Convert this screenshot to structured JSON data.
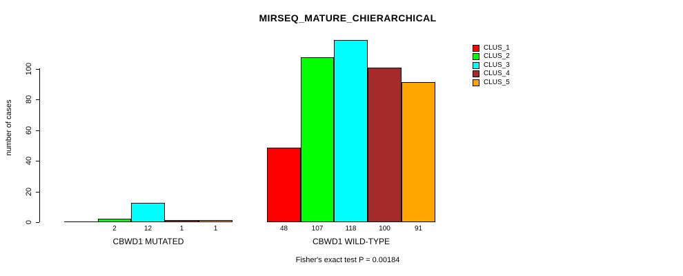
{
  "page": {
    "title": "MIRSEQ_MATURE_CHIERARCHICAL",
    "footer": "Fisher's exact test P = 0.00184"
  },
  "chart_data": {
    "type": "bar",
    "title": "MIRSEQ_MATURE_CHIERARCHICAL",
    "xlabel": "",
    "ylabel": "number of cases",
    "ylim": [
      0,
      118
    ],
    "yticks": [
      0,
      20,
      40,
      60,
      80,
      100
    ],
    "grid": false,
    "legend_position": "top-right",
    "categories": [
      "CBWD1 MUTATED",
      "CBWD1 WILD-TYPE"
    ],
    "series": [
      {
        "name": "CLUS_1",
        "color": "#FF0000",
        "values": [
          0,
          48
        ]
      },
      {
        "name": "CLUS_2",
        "color": "#00FF00",
        "values": [
          2,
          107
        ]
      },
      {
        "name": "CLUS_3",
        "color": "#00FFFF",
        "values": [
          12,
          118
        ]
      },
      {
        "name": "CLUS_4",
        "color": "#A52A2A",
        "values": [
          1,
          100
        ]
      },
      {
        "name": "CLUS_5",
        "color": "#FFA500",
        "values": [
          1,
          91
        ]
      }
    ],
    "bar_value_labels": [
      [
        "",
        "48"
      ],
      [
        "2",
        "107"
      ],
      [
        "12",
        "118"
      ],
      [
        "1",
        "100"
      ],
      [
        "1",
        "91"
      ]
    ],
    "annotation": "Fisher's exact test P = 0.00184"
  }
}
